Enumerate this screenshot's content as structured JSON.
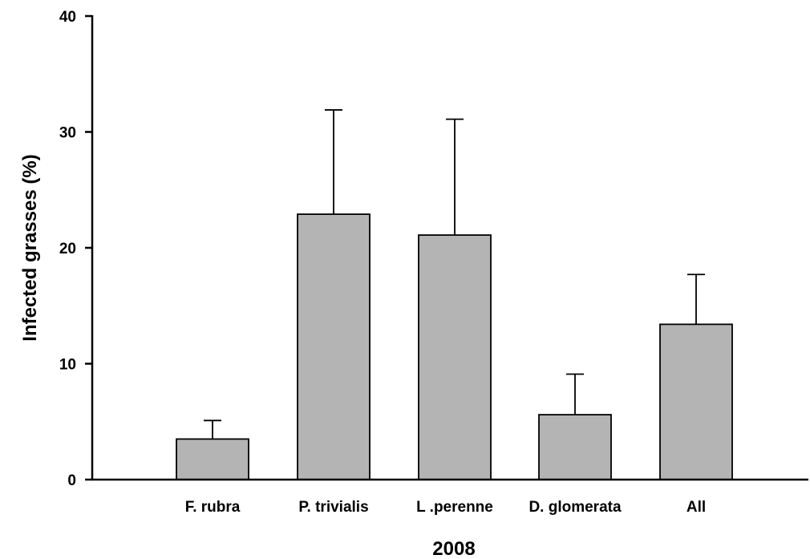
{
  "chart_data": {
    "type": "bar",
    "title": "",
    "xlabel": "2008",
    "ylabel": "Infected grasses (%)",
    "ylim": [
      0,
      40
    ],
    "yticks": [
      0,
      10,
      20,
      30,
      40
    ],
    "categories": [
      "F. rubra",
      "P. trivialis",
      "L .perenne",
      "D. glomerata",
      "All"
    ],
    "values": [
      3.5,
      22.9,
      21.1,
      5.6,
      13.4
    ],
    "error_plus": [
      1.6,
      9.0,
      10.0,
      3.5,
      4.3
    ],
    "grid": false,
    "legend": "none",
    "colors": {
      "bar_fill": "#b4b4b4",
      "bar_stroke": "#000000",
      "axis": "#000000"
    }
  }
}
